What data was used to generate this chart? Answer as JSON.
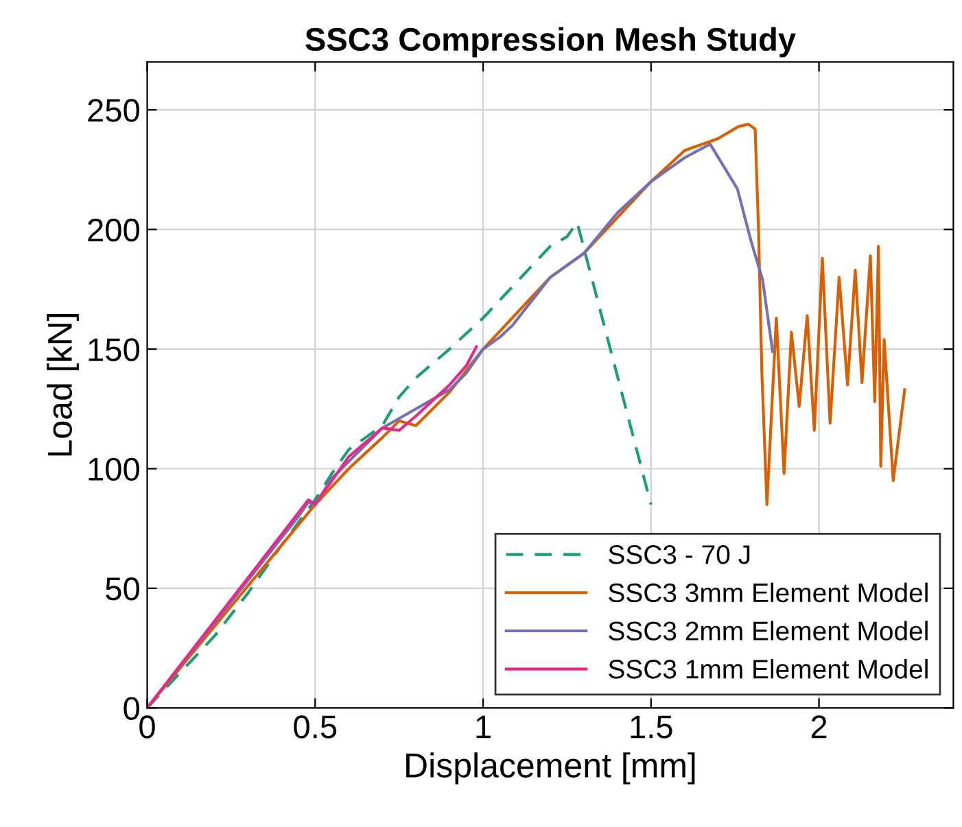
{
  "chart_data": {
    "type": "line",
    "title": "SSC3 Compression Mesh Study",
    "xlabel": "Displacement [mm]",
    "ylabel": "Load [kN]",
    "xlim": [
      0,
      2.4
    ],
    "ylim": [
      0,
      270
    ],
    "xticks": [
      0,
      0.5,
      1,
      1.5,
      2
    ],
    "yticks": [
      0,
      50,
      100,
      150,
      200,
      250
    ],
    "grid": true,
    "legend": "bottom right",
    "series": [
      {
        "name": "SSC3 - 70 J",
        "color": "#1b9e77",
        "line_style": "dashed",
        "x": [
          0,
          0.1,
          0.2,
          0.3,
          0.4,
          0.5,
          0.55,
          0.6,
          0.65,
          0.7,
          0.75,
          0.8,
          0.9,
          1.0,
          1.1,
          1.2,
          1.25,
          1.28,
          1.5
        ],
        "values": [
          0,
          15,
          30,
          48,
          68,
          87,
          98,
          108,
          113,
          118,
          130,
          138,
          150,
          163,
          178,
          193,
          197,
          203,
          85
        ]
      },
      {
        "name": "SSC3 3mm Element Model",
        "color": "#d95f02",
        "line_style": "solid",
        "x": [
          0,
          0.5,
          0.6,
          0.7,
          0.75,
          0.8,
          0.9,
          1.0,
          1.1,
          1.2,
          1.3,
          1.4,
          1.5,
          1.6,
          1.7,
          1.76,
          1.79,
          1.81,
          1.82,
          1.83,
          1.845,
          1.873,
          1.896,
          1.918,
          1.941,
          1.965,
          1.986,
          2.01,
          2.033,
          2.06,
          2.085,
          2.108,
          2.128,
          2.153,
          2.166,
          2.177,
          2.184,
          2.194,
          2.221,
          2.255
        ],
        "values": [
          0,
          85,
          100,
          113,
          120,
          118,
          132,
          150,
          165,
          180,
          190,
          205,
          220,
          233,
          238,
          243,
          244,
          242,
          200,
          140,
          85,
          163,
          98,
          157,
          126,
          164,
          116,
          188,
          119,
          180,
          135,
          183,
          136,
          189,
          128,
          193,
          101,
          154,
          95,
          133
        ]
      },
      {
        "name": "SSC3 2mm Element Model",
        "color": "#7570b3",
        "line_style": "solid",
        "x": [
          0,
          0.45,
          0.48,
          0.5,
          0.55,
          0.7,
          0.8,
          0.9,
          0.95,
          1.0,
          1.05,
          1.088,
          1.2,
          1.3,
          1.4,
          1.5,
          1.6,
          1.676,
          1.757,
          1.798,
          1.832,
          1.862
        ],
        "values": [
          0,
          80,
          86,
          85,
          96,
          117,
          125,
          133,
          140,
          150,
          155,
          160,
          180,
          190,
          207,
          220,
          230,
          235.7,
          217,
          195,
          179,
          149
        ]
      },
      {
        "name": "SSC3 1mm Element Model",
        "color": "#e7298a",
        "line_style": "solid",
        "x": [
          0,
          0.48,
          0.5,
          0.6,
          0.7,
          0.75,
          0.8,
          0.9,
          0.95,
          0.98
        ],
        "values": [
          0,
          87,
          85,
          105,
          117,
          116,
          122,
          135,
          143,
          151
        ]
      }
    ]
  }
}
